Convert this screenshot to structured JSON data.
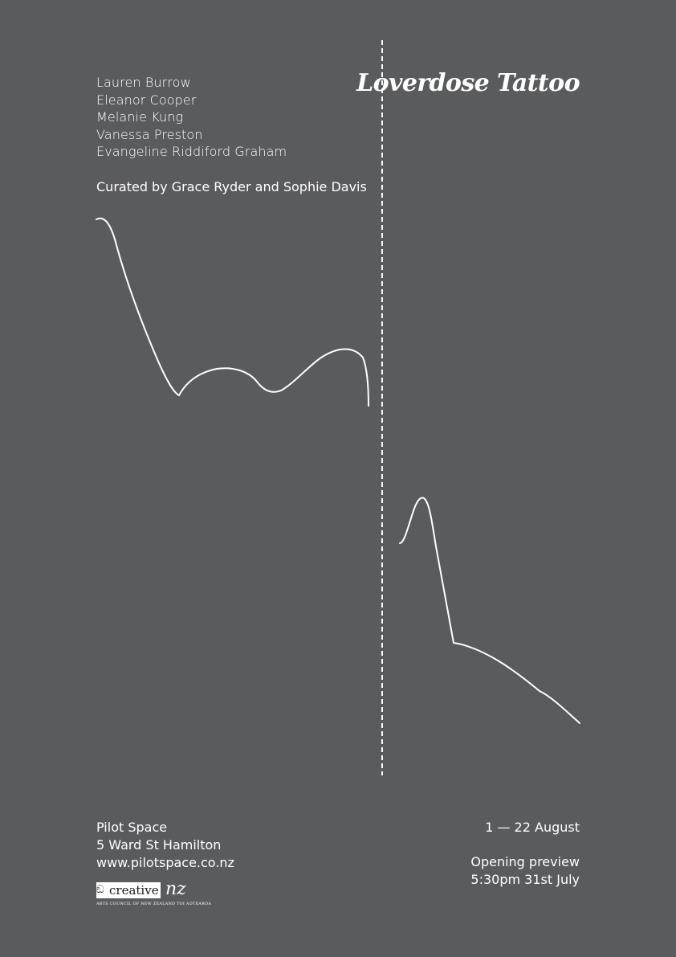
{
  "exhibition": {
    "title": "Loverdose Tattoo",
    "artists": [
      "Lauren Burrow",
      "Eleanor Cooper",
      "Melanie Kung",
      "Vanessa Preston",
      "Evangeline Riddiford Graham"
    ],
    "curated_by": "Curated by Grace Ryder and Sophie Davis"
  },
  "venue": {
    "name": "Pilot Space",
    "address": "5 Ward St Hamilton",
    "website": "www.pilotspace.co.nz"
  },
  "dates": {
    "run": "1 — 22 August",
    "opening_label": "Opening preview",
    "opening_time": "5:30pm 31st July"
  },
  "sponsor": {
    "logo_word": "creative",
    "logo_suffix": "nz",
    "tagline": "ARTS COUNCIL OF NEW ZEALAND TOI AOTEAROA"
  },
  "colors": {
    "background": "#5a5b5d",
    "ink": "#ffffff"
  }
}
